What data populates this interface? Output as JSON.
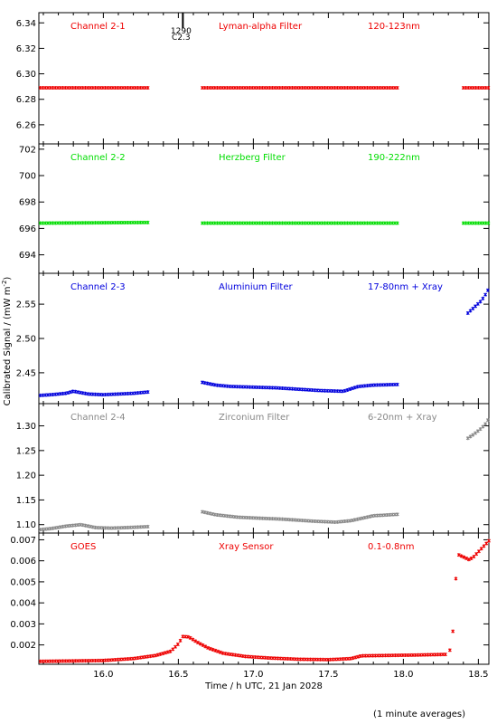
{
  "ylabel_main": "Calibrated Signal / (mW m",
  "ylabel_sup": "-2",
  "ylabel_end": ")",
  "xlabel": "Time / h UTC, 21 Jan 2028",
  "footnote": "(1 minute averages)",
  "x_ticks": [
    "16.0",
    "16.5",
    "17.0",
    "17.5",
    "18.0",
    "18.5"
  ],
  "event_marker": {
    "x": 16.53,
    "label_top": "1290",
    "label_bottom": "C2.3"
  },
  "chart_data": [
    {
      "type": "scatter",
      "channel_label": "Channel 2-1",
      "filter_label": "Lyman-alpha Filter",
      "band_label": "120-123nm",
      "color": "#ee0000",
      "xlim": [
        15.57,
        18.57
      ],
      "ylim": [
        6.245,
        6.348
      ],
      "y_ticks": [
        6.26,
        6.28,
        6.3,
        6.32,
        6.34
      ],
      "y_tick_labels": [
        "6.26",
        "6.28",
        "6.30",
        "6.32",
        "6.34"
      ],
      "segments": [
        {
          "x": [
            15.58,
            16.3
          ],
          "y": [
            6.289,
            6.289
          ]
        },
        {
          "x": [
            16.66,
            17.97
          ],
          "y": [
            6.289,
            6.289
          ]
        },
        {
          "x": [
            18.4,
            18.57
          ],
          "y": [
            6.289,
            6.289
          ]
        }
      ]
    },
    {
      "type": "scatter",
      "channel_label": "Channel 2-2",
      "filter_label": "Herzberg Filter",
      "band_label": "190-222nm",
      "color": "#00dd00",
      "xlim": [
        15.57,
        18.57
      ],
      "ylim": [
        692.6,
        702.4
      ],
      "y_ticks": [
        694,
        696,
        698,
        700,
        702
      ],
      "y_tick_labels": [
        "694",
        "696",
        "698",
        "700",
        "702"
      ],
      "segments": [
        {
          "x": [
            15.58,
            16.3
          ],
          "y": [
            696.4,
            696.45
          ]
        },
        {
          "x": [
            16.66,
            17.97
          ],
          "y": [
            696.4,
            696.4
          ]
        },
        {
          "x": [
            18.4,
            18.57
          ],
          "y": [
            696.4,
            696.4
          ]
        }
      ]
    },
    {
      "type": "scatter",
      "channel_label": "Channel 2-3",
      "filter_label": "Aluminium Filter",
      "band_label": "17-80nm + Xray",
      "color": "#0000dd",
      "xlim": [
        15.57,
        18.57
      ],
      "ylim": [
        2.405,
        2.595
      ],
      "y_ticks": [
        2.45,
        2.5,
        2.55
      ],
      "y_tick_labels": [
        "2.45",
        "2.50",
        "2.55"
      ],
      "segments": [
        {
          "x": [
            15.58,
            15.65,
            15.75,
            15.8,
            15.9,
            16.0,
            16.1,
            16.2,
            16.3
          ],
          "y": [
            2.417,
            2.418,
            2.42,
            2.423,
            2.419,
            2.418,
            2.419,
            2.42,
            2.422
          ]
        },
        {
          "x": [
            16.66,
            16.75,
            16.85,
            17.0,
            17.15,
            17.3,
            17.45,
            17.6,
            17.7,
            17.8,
            17.97
          ],
          "y": [
            2.436,
            2.432,
            2.43,
            2.429,
            2.428,
            2.426,
            2.424,
            2.423,
            2.43,
            2.432,
            2.433
          ]
        },
        {
          "x": [
            18.43,
            18.47,
            18.52,
            18.55,
            18.57
          ],
          "y": [
            2.537,
            2.545,
            2.555,
            2.565,
            2.573
          ]
        }
      ]
    },
    {
      "type": "scatter",
      "channel_label": "Channel 2-4",
      "filter_label": "Zirconium Filter",
      "band_label": "6-20nm + Xray",
      "color": "#888888",
      "xlim": [
        15.57,
        18.57
      ],
      "ylim": [
        1.083,
        1.345
      ],
      "y_ticks": [
        1.1,
        1.15,
        1.2,
        1.25,
        1.3
      ],
      "y_tick_labels": [
        "1.10",
        "1.15",
        "1.20",
        "1.25",
        "1.30"
      ],
      "segments": [
        {
          "x": [
            15.58,
            15.65,
            15.75,
            15.85,
            15.95,
            16.05,
            16.15,
            16.3
          ],
          "y": [
            1.09,
            1.092,
            1.097,
            1.1,
            1.094,
            1.093,
            1.094,
            1.096
          ]
        },
        {
          "x": [
            16.66,
            16.75,
            16.9,
            17.05,
            17.2,
            17.4,
            17.55,
            17.65,
            17.8,
            17.97
          ],
          "y": [
            1.126,
            1.12,
            1.115,
            1.113,
            1.111,
            1.107,
            1.105,
            1.108,
            1.118,
            1.121
          ]
        },
        {
          "x": [
            18.43,
            18.47,
            18.52,
            18.55,
            18.57
          ],
          "y": [
            1.275,
            1.283,
            1.295,
            1.305,
            1.315
          ]
        }
      ]
    },
    {
      "type": "scatter",
      "channel_label": "GOES",
      "filter_label": "Xray Sensor",
      "band_label": "0.1-0.8nm",
      "color": "#ee0000",
      "xlim": [
        15.57,
        18.57
      ],
      "ylim": [
        0.00108,
        0.00732
      ],
      "y_ticks": [
        0.002,
        0.003,
        0.004,
        0.005,
        0.006,
        0.007
      ],
      "y_tick_labels": [
        "0.002",
        "0.003",
        "0.004",
        "0.005",
        "0.006",
        "0.007"
      ],
      "segments": [
        {
          "x": [
            15.58,
            15.8,
            16.0,
            16.2,
            16.35,
            16.45,
            16.5,
            16.53,
            16.57,
            16.62,
            16.7,
            16.8,
            16.95,
            17.1,
            17.3,
            17.5,
            17.65,
            17.72,
            17.9,
            18.1,
            18.29
          ],
          "y": [
            0.00122,
            0.00124,
            0.00126,
            0.00135,
            0.0015,
            0.0017,
            0.00205,
            0.0024,
            0.00238,
            0.00215,
            0.00185,
            0.0016,
            0.00145,
            0.00138,
            0.00132,
            0.0013,
            0.00135,
            0.00148,
            0.0015,
            0.00152,
            0.00155
          ]
        },
        {
          "x": [
            18.31
          ],
          "y": [
            0.00175
          ]
        },
        {
          "x": [
            18.33
          ],
          "y": [
            0.00265
          ]
        },
        {
          "x": [
            18.35
          ],
          "y": [
            0.00515
          ]
        },
        {
          "x": [
            18.37,
            18.41,
            18.44,
            18.47,
            18.51,
            18.55,
            18.57
          ],
          "y": [
            0.00628,
            0.00615,
            0.00605,
            0.0062,
            0.0065,
            0.0068,
            0.00695
          ]
        }
      ]
    }
  ]
}
